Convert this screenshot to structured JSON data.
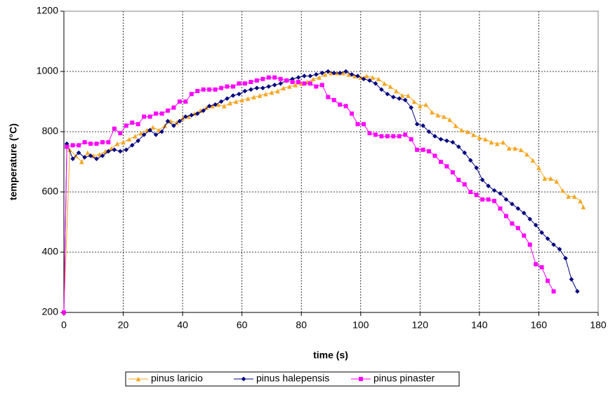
{
  "chart_data": {
    "type": "line",
    "x_label": "time (s)",
    "y_label": "temperature (°C)",
    "xlim": [
      0,
      180
    ],
    "xticks": [
      0,
      20,
      40,
      60,
      80,
      100,
      120,
      140,
      160,
      180
    ],
    "ylim": [
      200,
      1200
    ],
    "yticks": [
      200,
      400,
      600,
      800,
      1000,
      1200
    ],
    "grid": true,
    "legend": "bottom",
    "series": [
      {
        "name": "pinus laricio",
        "color": "#f5a623",
        "marker": "triangle",
        "x": [
          0,
          2,
          4,
          6,
          8,
          10,
          12,
          14,
          16,
          18,
          20,
          22,
          24,
          26,
          28,
          30,
          32,
          34,
          36,
          38,
          40,
          42,
          44,
          46,
          48,
          50,
          52,
          54,
          56,
          58,
          60,
          62,
          64,
          66,
          68,
          70,
          72,
          74,
          76,
          78,
          80,
          82,
          84,
          86,
          88,
          90,
          92,
          94,
          96,
          98,
          100,
          102,
          104,
          106,
          108,
          110,
          112,
          114,
          116,
          118,
          120,
          122,
          124,
          126,
          128,
          130,
          132,
          134,
          136,
          138,
          140,
          142,
          144,
          146,
          148,
          150,
          152,
          154,
          156,
          158,
          160,
          162,
          164,
          166,
          168,
          170,
          172,
          174,
          175
        ],
        "values": [
          200,
          740,
          720,
          700,
          730,
          720,
          725,
          735,
          745,
          760,
          765,
          775,
          785,
          795,
          805,
          815,
          805,
          820,
          835,
          830,
          845,
          850,
          860,
          870,
          880,
          885,
          890,
          885,
          895,
          900,
          905,
          910,
          915,
          920,
          925,
          930,
          935,
          945,
          950,
          955,
          960,
          965,
          975,
          980,
          990,
          995,
          995,
          995,
          990,
          985,
          980,
          985,
          980,
          975,
          960,
          950,
          935,
          920,
          920,
          900,
          885,
          890,
          865,
          855,
          850,
          840,
          820,
          805,
          800,
          790,
          780,
          775,
          765,
          760,
          765,
          745,
          745,
          740,
          725,
          705,
          680,
          645,
          645,
          635,
          605,
          585,
          585,
          570,
          550
        ]
      },
      {
        "name": "pinus halepensis",
        "color": "#000080",
        "marker": "diamond",
        "x": [
          0,
          1,
          3,
          5,
          7,
          9,
          11,
          13,
          15,
          17,
          19,
          21,
          23,
          25,
          27,
          29,
          31,
          33,
          35,
          37,
          39,
          41,
          43,
          45,
          47,
          49,
          51,
          53,
          55,
          57,
          59,
          61,
          63,
          65,
          67,
          69,
          71,
          73,
          75,
          77,
          79,
          81,
          83,
          85,
          87,
          89,
          91,
          93,
          95,
          97,
          99,
          101,
          103,
          105,
          107,
          109,
          111,
          113,
          115,
          117,
          119,
          121,
          123,
          125,
          127,
          129,
          131,
          133,
          135,
          137,
          139,
          141,
          143,
          145,
          147,
          149,
          151,
          153,
          155,
          157,
          159,
          161,
          163,
          165,
          167,
          169,
          171,
          173
        ],
        "values": [
          200,
          760,
          710,
          730,
          715,
          720,
          710,
          720,
          735,
          740,
          735,
          740,
          755,
          770,
          790,
          805,
          790,
          800,
          835,
          820,
          835,
          850,
          855,
          860,
          870,
          885,
          890,
          900,
          910,
          920,
          925,
          935,
          940,
          945,
          945,
          950,
          955,
          960,
          970,
          975,
          980,
          985,
          985,
          990,
          995,
          1000,
          995,
          995,
          1000,
          990,
          985,
          975,
          970,
          960,
          940,
          925,
          915,
          910,
          905,
          880,
          825,
          820,
          800,
          785,
          775,
          770,
          765,
          750,
          730,
          705,
          680,
          640,
          620,
          605,
          595,
          575,
          560,
          545,
          530,
          510,
          490,
          465,
          445,
          425,
          410,
          380,
          310,
          270
        ]
      },
      {
        "name": "pinus pinaster",
        "color": "#ff00ff",
        "marker": "square",
        "x": [
          0,
          1,
          3,
          5,
          7,
          9,
          11,
          13,
          15,
          17,
          19,
          21,
          23,
          25,
          27,
          29,
          31,
          33,
          35,
          37,
          39,
          41,
          43,
          45,
          47,
          49,
          51,
          53,
          55,
          57,
          59,
          61,
          63,
          65,
          67,
          69,
          71,
          73,
          75,
          77,
          79,
          81,
          83,
          85,
          87,
          89,
          91,
          93,
          95,
          97,
          99,
          101,
          103,
          105,
          107,
          109,
          111,
          113,
          115,
          117,
          119,
          121,
          123,
          125,
          127,
          129,
          131,
          133,
          135,
          137,
          139,
          141,
          143,
          145,
          147,
          149,
          151,
          153,
          155,
          157,
          159,
          161,
          163,
          165
        ],
        "values": [
          200,
          750,
          755,
          755,
          765,
          760,
          760,
          765,
          765,
          810,
          795,
          820,
          830,
          825,
          850,
          850,
          860,
          860,
          870,
          880,
          900,
          900,
          925,
          935,
          940,
          940,
          940,
          945,
          950,
          950,
          960,
          960,
          965,
          970,
          975,
          980,
          980,
          975,
          970,
          965,
          965,
          960,
          960,
          950,
          955,
          915,
          905,
          890,
          885,
          860,
          825,
          825,
          795,
          790,
          785,
          785,
          785,
          785,
          790,
          775,
          740,
          740,
          735,
          720,
          700,
          685,
          665,
          640,
          625,
          600,
          590,
          575,
          575,
          570,
          545,
          520,
          495,
          480,
          455,
          425,
          360,
          350,
          305,
          270
        ]
      }
    ]
  }
}
